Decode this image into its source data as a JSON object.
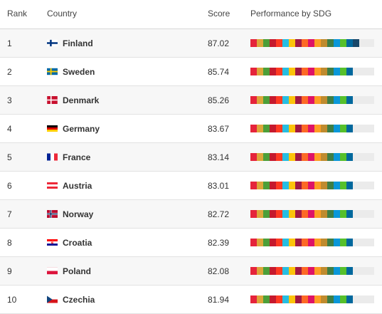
{
  "headers": {
    "rank": "Rank",
    "country": "Country",
    "score": "Score",
    "performance": "Performance by SDG"
  },
  "sdg_colors": [
    "#e5243b",
    "#dda63a",
    "#4c9f38",
    "#c5192d",
    "#ff3a21",
    "#26bde2",
    "#fcc30b",
    "#a21942",
    "#fd6925",
    "#dd1367",
    "#fd9d24",
    "#bf8b2e",
    "#3f7e44",
    "#0a97d9",
    "#56c02b",
    "#00689d",
    "#19486a"
  ],
  "rows": [
    {
      "rank": "1",
      "country": "Finland",
      "score": "87.02",
      "flag": "finland-flag-icon",
      "sdg_segments": 17
    },
    {
      "rank": "2",
      "country": "Sweden",
      "score": "85.74",
      "flag": "sweden-flag-icon",
      "sdg_segments": 16
    },
    {
      "rank": "3",
      "country": "Denmark",
      "score": "85.26",
      "flag": "denmark-flag-icon",
      "sdg_segments": 16
    },
    {
      "rank": "4",
      "country": "Germany",
      "score": "83.67",
      "flag": "germany-flag-icon",
      "sdg_segments": 16
    },
    {
      "rank": "5",
      "country": "France",
      "score": "83.14",
      "flag": "france-flag-icon",
      "sdg_segments": 16
    },
    {
      "rank": "6",
      "country": "Austria",
      "score": "83.01",
      "flag": "austria-flag-icon",
      "sdg_segments": 16
    },
    {
      "rank": "7",
      "country": "Norway",
      "score": "82.72",
      "flag": "norway-flag-icon",
      "sdg_segments": 16
    },
    {
      "rank": "8",
      "country": "Croatia",
      "score": "82.39",
      "flag": "croatia-flag-icon",
      "sdg_segments": 16
    },
    {
      "rank": "9",
      "country": "Poland",
      "score": "82.08",
      "flag": "poland-flag-icon",
      "sdg_segments": 16
    },
    {
      "rank": "10",
      "country": "Czechia",
      "score": "81.94",
      "flag": "czechia-flag-icon",
      "sdg_segments": 16
    }
  ]
}
